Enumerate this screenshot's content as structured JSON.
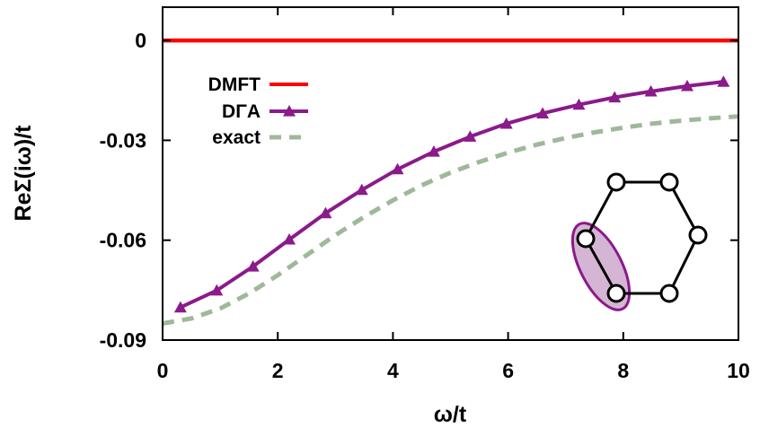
{
  "chart_data": {
    "type": "line",
    "xlabel": "ω/t",
    "ylabel": "ReΣ(iω)/t",
    "xlim": [
      0,
      10
    ],
    "ylim": [
      -0.09,
      0.01
    ],
    "x_ticks": [
      {
        "value": 0,
        "label": "0"
      },
      {
        "value": 2,
        "label": "2"
      },
      {
        "value": 4,
        "label": "4"
      },
      {
        "value": 6,
        "label": "6"
      },
      {
        "value": 8,
        "label": "8"
      },
      {
        "value": 10,
        "label": "10"
      }
    ],
    "y_ticks": [
      {
        "value": 0,
        "label": "0"
      },
      {
        "value": -0.03,
        "label": "-0.03"
      },
      {
        "value": -0.06,
        "label": "-0.06"
      },
      {
        "value": -0.09,
        "label": "-0.09"
      }
    ],
    "grid": false,
    "legend_position": "top-left",
    "series": [
      {
        "name": "DMFT",
        "color": "#ff0000",
        "style": "solid",
        "marker": "none",
        "x": [
          0,
          10
        ],
        "y": [
          0,
          0
        ]
      },
      {
        "name": "DΓA",
        "color": "#8b1a8b",
        "style": "solid",
        "marker": "triangle",
        "x": [
          0.31,
          0.94,
          1.57,
          2.2,
          2.83,
          3.46,
          4.08,
          4.71,
          5.34,
          5.97,
          6.6,
          7.23,
          7.85,
          8.48,
          9.11,
          9.74
        ],
        "y": [
          -0.0802,
          -0.0751,
          -0.0679,
          -0.0598,
          -0.0519,
          -0.0449,
          -0.0387,
          -0.0334,
          -0.0289,
          -0.025,
          -0.0219,
          -0.0193,
          -0.0171,
          -0.0153,
          -0.0137,
          -0.0124
        ]
      },
      {
        "name": "exact",
        "color": "#9fb89a",
        "style": "dashed",
        "marker": "none",
        "x": [
          0,
          0.5,
          1,
          1.5,
          2,
          2.5,
          3,
          3.5,
          4,
          4.5,
          5,
          5.5,
          6,
          6.5,
          7,
          7.5,
          8,
          8.5,
          9,
          9.5,
          10
        ],
        "y": [
          -0.085,
          -0.0835,
          -0.0805,
          -0.076,
          -0.0705,
          -0.0645,
          -0.0585,
          -0.053,
          -0.048,
          -0.0435,
          -0.0397,
          -0.0365,
          -0.0337,
          -0.0313,
          -0.0293,
          -0.0276,
          -0.0262,
          -0.025,
          -0.0241,
          -0.0234,
          -0.0228
        ]
      }
    ],
    "inset": {
      "type": "hexagon-diagram",
      "sites": 6,
      "highlighted_sites": 2,
      "highlight_color": "#8b1a8b"
    }
  }
}
